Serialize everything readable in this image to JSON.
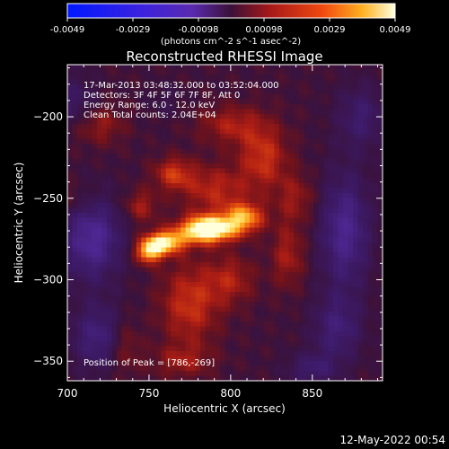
{
  "chart_data": {
    "type": "heatmap",
    "title": "Reconstructed RHESSI Image",
    "xlabel": "Heliocentric X (arcsec)",
    "ylabel": "Heliocentric Y (arcsec)",
    "xlim": [
      700,
      893
    ],
    "ylim": [
      -362,
      -168
    ],
    "x_ticks": [
      700,
      750,
      800,
      850
    ],
    "y_ticks": [
      -200,
      -250,
      -300,
      -350
    ],
    "grid": false,
    "colorbar": {
      "orientation": "horizontal",
      "position": "top",
      "ticks": [
        "-0.0049",
        "-0.0029",
        "-0.00098",
        "0.00098",
        "0.0029",
        "0.0049"
      ],
      "range": [
        -0.0049,
        0.0049
      ],
      "unit_label": "(photons cm^-2 s^-1 asec^-2)"
    },
    "annotations": [
      "17-Mar-2013 03:48:32.000 to 03:52:04.000",
      "Detectors: 3F 4F 5F 6F 7F 8F, Att 0",
      "Energy Range: 6.0 - 12.0 keV",
      "Clean     Total counts: 2.04E+04",
      "Position of Peak = [786,-269]"
    ],
    "peak": [
      786,
      -269
    ],
    "footer_date": "12-May-2022 00:54"
  },
  "colors": {
    "background": "#000000",
    "foreground": "#ffffff",
    "colormap": [
      "#0033ff",
      "#5a2cc8",
      "#3a1a5e",
      "#6a1020",
      "#d42a10",
      "#ff8a00",
      "#ffffcc"
    ]
  }
}
